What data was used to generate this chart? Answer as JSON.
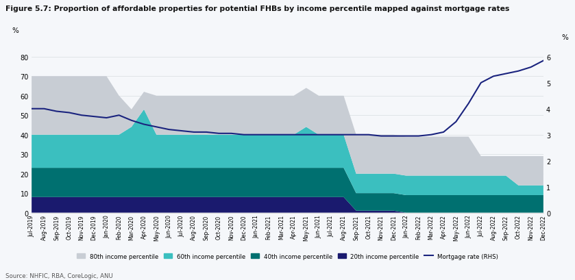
{
  "title": "Figure 5.7: Proportion of affordable properties for potential FHBs by income percentile mapped against mortgage rates",
  "source": "Source: NHFIC, RBA, CoreLogic, ANU",
  "labels": [
    "Jul-2019",
    "Aug-2019",
    "Sep-2019",
    "Oct-2019",
    "Nov-2019",
    "Dec-2019",
    "Jan-2020",
    "Feb-2020",
    "Mar-2020",
    "Apr-2020",
    "May-2020",
    "Jun-2020",
    "Jul-2020",
    "Aug-2020",
    "Sep-2020",
    "Oct-2020",
    "Nov-2020",
    "Dec-2020",
    "Jan-2021",
    "Feb-2021",
    "Mar-2021",
    "Apr-2021",
    "May-2021",
    "Jun-2021",
    "Jul-2021",
    "Aug-2021",
    "Sep-2021",
    "Oct-2021",
    "Nov-2021",
    "Dec-2021",
    "Jan-2022",
    "Feb-2022",
    "Mar-2022",
    "Apr-2022",
    "May-2022",
    "Jun-2022",
    "Jul-2022",
    "Aug-2022",
    "Sep-2022",
    "Oct-2022",
    "Nov-2022",
    "Dec-2022"
  ],
  "p20": [
    8,
    8,
    8,
    8,
    8,
    8,
    8,
    8,
    8,
    8,
    8,
    8,
    8,
    8,
    8,
    8,
    8,
    8,
    8,
    8,
    8,
    8,
    8,
    8,
    8,
    8,
    1,
    1,
    1,
    1,
    0,
    0,
    0,
    0,
    0,
    0,
    0,
    0,
    0,
    0,
    0,
    0
  ],
  "p40": [
    15,
    15,
    15,
    15,
    15,
    15,
    15,
    15,
    15,
    15,
    15,
    15,
    15,
    15,
    15,
    15,
    15,
    15,
    15,
    15,
    15,
    15,
    15,
    15,
    15,
    15,
    9,
    9,
    9,
    9,
    9,
    9,
    9,
    9,
    9,
    9,
    9,
    9,
    9,
    9,
    9,
    9
  ],
  "p60": [
    17,
    17,
    17,
    17,
    17,
    17,
    17,
    17,
    21,
    30,
    17,
    17,
    17,
    17,
    17,
    17,
    17,
    17,
    17,
    17,
    17,
    17,
    21,
    17,
    17,
    17,
    10,
    10,
    10,
    10,
    10,
    10,
    10,
    10,
    10,
    10,
    10,
    10,
    10,
    5,
    5,
    5
  ],
  "p80": [
    30,
    30,
    30,
    30,
    30,
    30,
    30,
    20,
    9,
    9,
    20,
    20,
    20,
    20,
    20,
    20,
    20,
    20,
    20,
    20,
    20,
    20,
    20,
    20,
    20,
    20,
    20,
    20,
    20,
    20,
    20,
    20,
    20,
    20,
    20,
    20,
    10,
    10,
    10,
    15,
    15,
    15
  ],
  "mortgage_rate": [
    4.0,
    4.0,
    3.9,
    3.85,
    3.75,
    3.7,
    3.65,
    3.75,
    3.55,
    3.4,
    3.3,
    3.2,
    3.15,
    3.1,
    3.1,
    3.05,
    3.05,
    3.0,
    3.0,
    3.0,
    3.0,
    3.0,
    3.0,
    3.0,
    3.0,
    3.0,
    3.0,
    3.0,
    2.95,
    2.95,
    2.95,
    2.95,
    3.0,
    3.1,
    3.5,
    4.2,
    5.0,
    5.25,
    5.35,
    5.45,
    5.6,
    5.85
  ],
  "colors": {
    "p80": "#c8cdd4",
    "p60": "#3bbfbf",
    "p40": "#007070",
    "p20": "#1a1a6e",
    "mortgage": "#1a237e"
  },
  "ylim_left": [
    0,
    90
  ],
  "ylim_right": [
    0,
    6.75
  ],
  "yticks_left": [
    0,
    10,
    20,
    30,
    40,
    50,
    60,
    70,
    80
  ],
  "yticks_right": [
    0,
    1,
    2,
    3,
    4,
    5,
    6
  ],
  "background_color": "#f5f7fa"
}
